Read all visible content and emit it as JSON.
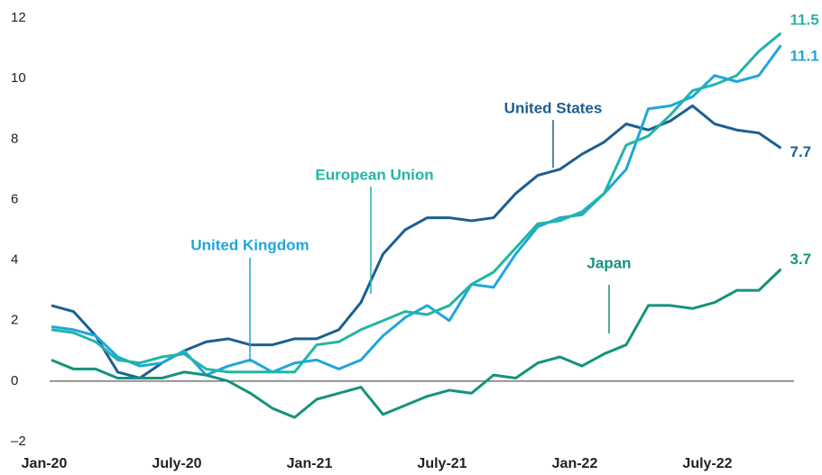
{
  "chart_data": {
    "type": "line",
    "categories": [
      "Jan-20",
      null,
      null,
      null,
      null,
      null,
      "July-20",
      null,
      null,
      null,
      null,
      null,
      "Jan-21",
      null,
      null,
      null,
      null,
      null,
      "July-21",
      null,
      null,
      null,
      null,
      null,
      "Jan-22",
      null,
      null,
      null,
      null,
      null,
      "July-22",
      null,
      null,
      null
    ],
    "series": [
      {
        "name": "United States",
        "color": "#1b5f91",
        "values": [
          2.5,
          2.3,
          1.5,
          0.3,
          0.1,
          0.6,
          1.0,
          1.3,
          1.4,
          1.2,
          1.2,
          1.4,
          1.4,
          1.7,
          2.6,
          4.2,
          5.0,
          5.4,
          5.4,
          5.3,
          5.4,
          6.2,
          6.8,
          7.0,
          7.5,
          7.9,
          8.5,
          8.3,
          8.6,
          9.1,
          8.5,
          8.3,
          8.2,
          7.7
        ]
      },
      {
        "name": "United Kingdom",
        "color": "#1fa6dd",
        "values": [
          1.8,
          1.7,
          1.5,
          0.8,
          0.5,
          0.6,
          1.0,
          0.2,
          0.5,
          0.7,
          0.3,
          0.6,
          0.7,
          0.4,
          0.7,
          1.5,
          2.1,
          2.5,
          2.0,
          3.2,
          3.1,
          4.2,
          5.1,
          5.4,
          5.5,
          6.2,
          7.0,
          9.0,
          9.1,
          9.4,
          10.1,
          9.9,
          10.1,
          11.1
        ]
      },
      {
        "name": "European Union",
        "color": "#22b5a5",
        "values": [
          1.7,
          1.6,
          1.3,
          0.7,
          0.6,
          0.8,
          0.9,
          0.4,
          0.3,
          0.3,
          0.3,
          0.3,
          1.2,
          1.3,
          1.7,
          2.0,
          2.3,
          2.2,
          2.5,
          3.2,
          3.6,
          4.4,
          5.2,
          5.3,
          5.6,
          6.2,
          7.8,
          8.1,
          8.8,
          9.6,
          9.8,
          10.1,
          10.9,
          11.5
        ]
      },
      {
        "name": "Japan",
        "color": "#14937b",
        "values": [
          0.7,
          0.4,
          0.4,
          0.1,
          0.1,
          0.1,
          0.3,
          0.2,
          0.0,
          -0.4,
          -0.9,
          -1.2,
          -0.6,
          -0.4,
          -0.2,
          -1.1,
          -0.8,
          -0.5,
          -0.3,
          -0.4,
          0.2,
          0.1,
          0.6,
          0.8,
          0.5,
          0.9,
          1.2,
          2.5,
          2.5,
          2.4,
          2.6,
          3.0,
          3.0,
          3.7
        ]
      }
    ],
    "ylim": [
      -2,
      12
    ],
    "yticks": [
      {
        "value": -2,
        "label": "–2"
      },
      0,
      2,
      4,
      6,
      8,
      10,
      12
    ]
  }
}
